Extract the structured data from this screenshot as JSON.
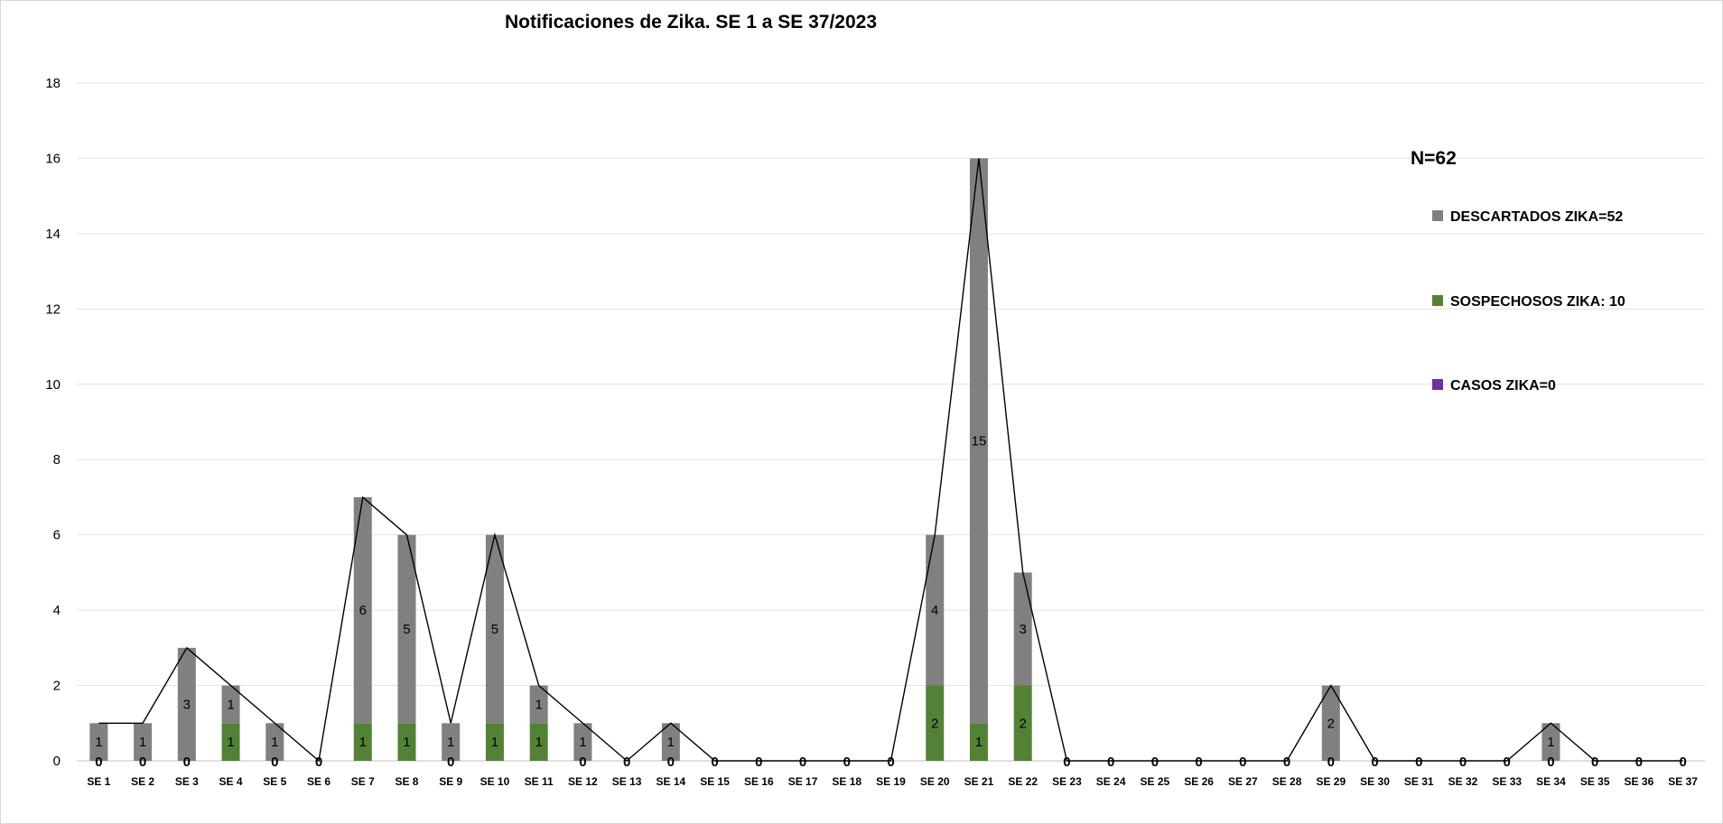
{
  "chart_data": {
    "type": "bar",
    "title": "Notificaciones de Zika. SE 1 a SE 37/2023",
    "annotation": "N=62",
    "categories": [
      "SE 1",
      "SE 2",
      "SE 3",
      "SE 4",
      "SE 5",
      "SE 6",
      "SE 7",
      "SE 8",
      "SE 9",
      "SE 10",
      "SE 11",
      "SE 12",
      "SE 13",
      "SE 14",
      "SE 15",
      "SE 16",
      "SE 17",
      "SE 18",
      "SE 19",
      "SE 20",
      "SE 21",
      "SE 22",
      "SE 23",
      "SE 24",
      "SE 25",
      "SE 26",
      "SE 27",
      "SE 28",
      "SE 29",
      "SE 30",
      "SE 31",
      "SE 32",
      "SE 33",
      "SE 34",
      "SE 35",
      "SE 36",
      "SE 37"
    ],
    "series": [
      {
        "name": "CASOS ZIKA=0",
        "color": "#7030a0",
        "values": [
          0,
          0,
          0,
          0,
          0,
          0,
          0,
          0,
          0,
          0,
          0,
          0,
          0,
          0,
          0,
          0,
          0,
          0,
          0,
          0,
          0,
          0,
          0,
          0,
          0,
          0,
          0,
          0,
          0,
          0,
          0,
          0,
          0,
          0,
          0,
          0,
          0
        ]
      },
      {
        "name": "SOSPECHOSOS ZIKA: 10",
        "color": "#538135",
        "values": [
          0,
          0,
          0,
          1,
          0,
          0,
          1,
          1,
          0,
          1,
          1,
          0,
          0,
          0,
          0,
          0,
          0,
          0,
          0,
          2,
          1,
          2,
          0,
          0,
          0,
          0,
          0,
          0,
          0,
          0,
          0,
          0,
          0,
          0,
          0,
          0,
          0
        ]
      },
      {
        "name": "DESCARTADOS ZIKA=52",
        "color": "#808080",
        "values": [
          1,
          1,
          3,
          1,
          1,
          0,
          6,
          5,
          1,
          5,
          1,
          1,
          0,
          1,
          0,
          0,
          0,
          0,
          0,
          4,
          15,
          3,
          0,
          0,
          0,
          0,
          0,
          0,
          2,
          0,
          0,
          0,
          0,
          1,
          0,
          0,
          0
        ]
      }
    ],
    "total_line": {
      "color": "#000000",
      "values": [
        1,
        1,
        3,
        2,
        1,
        0,
        7,
        6,
        1,
        6,
        2,
        1,
        0,
        1,
        0,
        0,
        0,
        0,
        0,
        6,
        16,
        5,
        0,
        0,
        0,
        0,
        0,
        0,
        2,
        0,
        0,
        0,
        0,
        1,
        0,
        0,
        0
      ]
    },
    "ylim": [
      0,
      18
    ],
    "yticks": [
      0,
      2,
      4,
      6,
      8,
      10,
      12,
      14,
      16,
      18
    ],
    "grid": true,
    "stacked": true,
    "legend_position": "right"
  }
}
